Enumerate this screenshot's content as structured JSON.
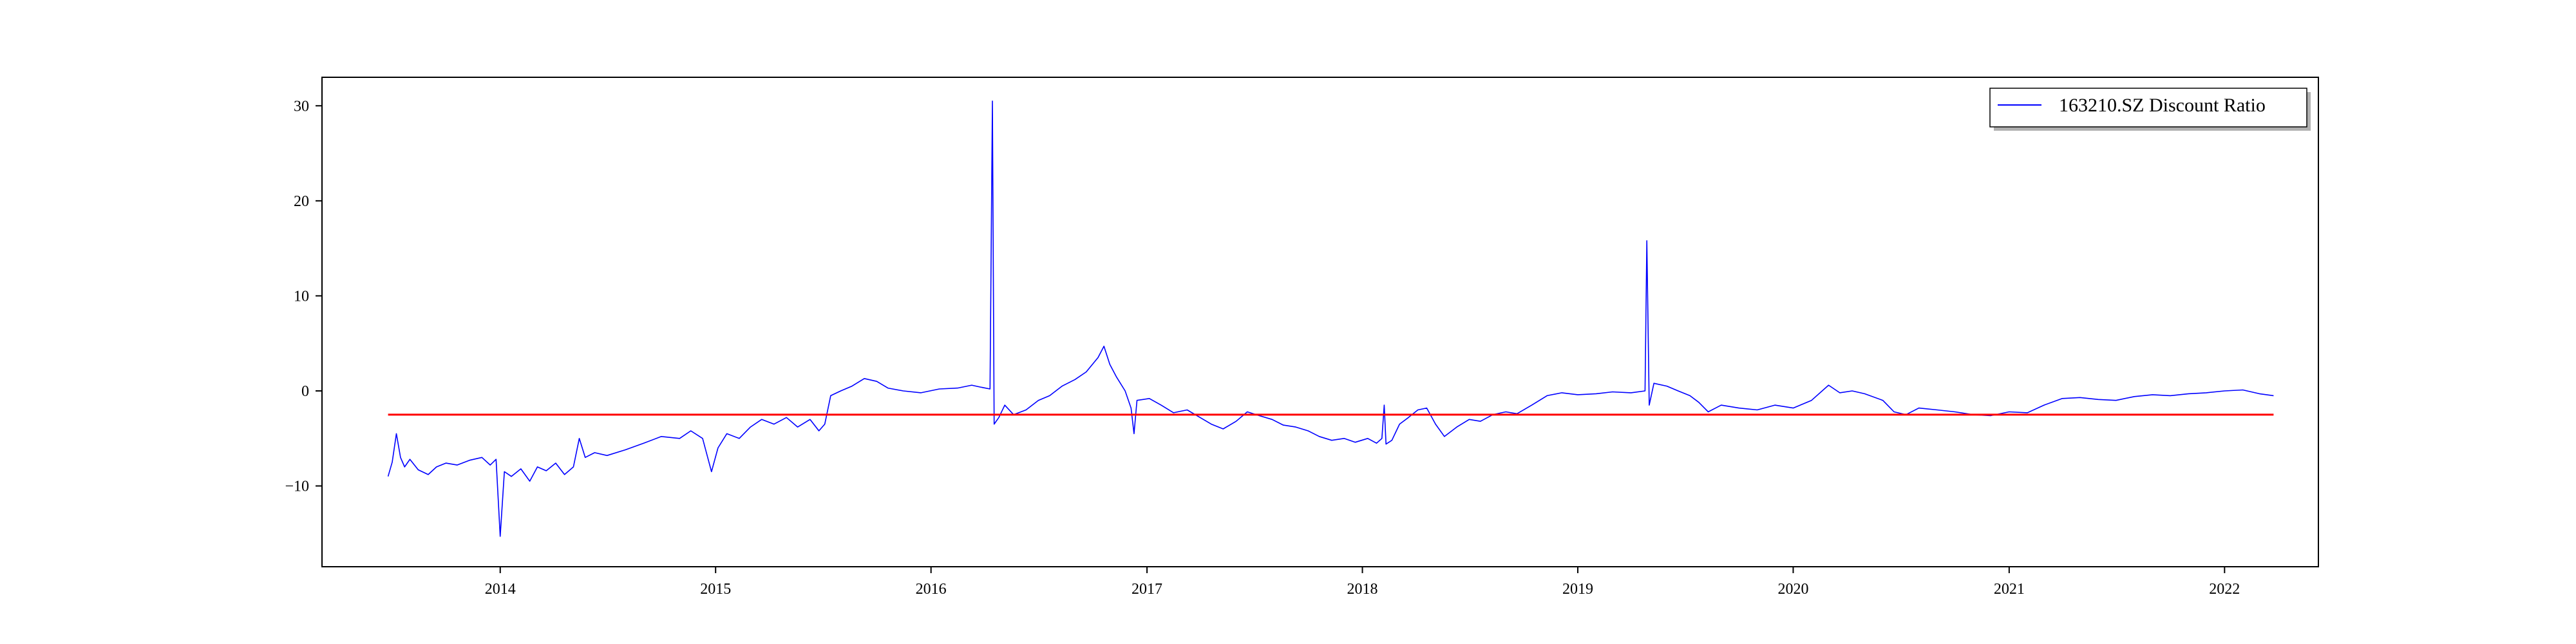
{
  "chart_data": {
    "type": "line",
    "title": "",
    "xlabel": "",
    "ylabel": "",
    "x_range": [
      "2013-03-05",
      "2022-06-09"
    ],
    "ylim": [
      -18.5,
      33.0
    ],
    "x_ticks": [
      "2014",
      "2015",
      "2016",
      "2017",
      "2018",
      "2019",
      "2020",
      "2021",
      "2022"
    ],
    "y_ticks": [
      -10,
      0,
      10,
      20,
      30
    ],
    "y_tick_labels": [
      "−10",
      "0",
      "10",
      "20",
      "30"
    ],
    "grid": false,
    "legend": {
      "position": "top-right",
      "entries": [
        "163210.SZ Discount Ratio"
      ]
    },
    "series": [
      {
        "name": "163210.SZ Discount Ratio",
        "color": "#0000ff",
        "points": [
          [
            "2013-06-25",
            -9.0
          ],
          [
            "2013-07-02",
            -7.5
          ],
          [
            "2013-07-09",
            -4.5
          ],
          [
            "2013-07-16",
            -7.0
          ],
          [
            "2013-07-23",
            -8.0
          ],
          [
            "2013-08-01",
            -7.2
          ],
          [
            "2013-08-15",
            -8.3
          ],
          [
            "2013-09-01",
            -8.8
          ],
          [
            "2013-09-15",
            -8.0
          ],
          [
            "2013-10-01",
            -7.6
          ],
          [
            "2013-10-20",
            -7.8
          ],
          [
            "2013-11-10",
            -7.3
          ],
          [
            "2013-12-01",
            -7.0
          ],
          [
            "2013-12-15",
            -7.8
          ],
          [
            "2013-12-25",
            -7.2
          ],
          [
            "2014-01-01",
            -15.3
          ],
          [
            "2014-01-08",
            -8.5
          ],
          [
            "2014-01-20",
            -9.0
          ],
          [
            "2014-02-05",
            -8.2
          ],
          [
            "2014-02-20",
            -9.5
          ],
          [
            "2014-03-05",
            -8.0
          ],
          [
            "2014-03-20",
            -8.4
          ],
          [
            "2014-04-05",
            -7.6
          ],
          [
            "2014-04-20",
            -8.8
          ],
          [
            "2014-05-05",
            -8.0
          ],
          [
            "2014-05-15",
            -5.0
          ],
          [
            "2014-05-25",
            -7.0
          ],
          [
            "2014-06-10",
            -6.5
          ],
          [
            "2014-07-01",
            -6.8
          ],
          [
            "2014-08-01",
            -6.2
          ],
          [
            "2014-09-01",
            -5.5
          ],
          [
            "2014-10-01",
            -4.8
          ],
          [
            "2014-11-01",
            -5.0
          ],
          [
            "2014-11-20",
            -4.2
          ],
          [
            "2014-12-10",
            -5.0
          ],
          [
            "2014-12-25",
            -8.5
          ],
          [
            "2015-01-05",
            -6.0
          ],
          [
            "2015-01-20",
            -4.5
          ],
          [
            "2015-02-10",
            -5.0
          ],
          [
            "2015-03-01",
            -3.8
          ],
          [
            "2015-03-20",
            -3.0
          ],
          [
            "2015-04-10",
            -3.5
          ],
          [
            "2015-05-01",
            -2.8
          ],
          [
            "2015-05-20",
            -3.8
          ],
          [
            "2015-06-10",
            -3.0
          ],
          [
            "2015-06-25",
            -4.2
          ],
          [
            "2015-07-05",
            -3.5
          ],
          [
            "2015-07-15",
            -0.5
          ],
          [
            "2015-08-01",
            0.0
          ],
          [
            "2015-08-20",
            0.5
          ],
          [
            "2015-09-10",
            1.3
          ],
          [
            "2015-10-01",
            1.0
          ],
          [
            "2015-10-20",
            0.3
          ],
          [
            "2015-11-15",
            0.0
          ],
          [
            "2015-12-15",
            -0.2
          ],
          [
            "2016-01-15",
            0.2
          ],
          [
            "2016-02-15",
            0.3
          ],
          [
            "2016-03-10",
            0.6
          ],
          [
            "2016-03-25",
            0.4
          ],
          [
            "2016-04-10",
            0.2
          ],
          [
            "2016-04-14",
            30.5
          ],
          [
            "2016-04-17",
            -3.5
          ],
          [
            "2016-04-25",
            -2.8
          ],
          [
            "2016-05-05",
            -1.5
          ],
          [
            "2016-05-20",
            -2.5
          ],
          [
            "2016-06-10",
            -2.0
          ],
          [
            "2016-07-01",
            -1.0
          ],
          [
            "2016-07-20",
            -0.5
          ],
          [
            "2016-08-10",
            0.5
          ],
          [
            "2016-09-01",
            1.2
          ],
          [
            "2016-09-20",
            2.0
          ],
          [
            "2016-10-10",
            3.5
          ],
          [
            "2016-10-20",
            4.7
          ],
          [
            "2016-10-30",
            2.8
          ],
          [
            "2016-11-10",
            1.5
          ],
          [
            "2016-11-25",
            0.0
          ],
          [
            "2016-12-05",
            -1.8
          ],
          [
            "2016-12-10",
            -4.5
          ],
          [
            "2016-12-15",
            -1.0
          ],
          [
            "2017-01-05",
            -0.8
          ],
          [
            "2017-01-25",
            -1.5
          ],
          [
            "2017-02-15",
            -2.3
          ],
          [
            "2017-03-10",
            -2.0
          ],
          [
            "2017-04-01",
            -2.8
          ],
          [
            "2017-04-20",
            -3.5
          ],
          [
            "2017-05-10",
            -4.0
          ],
          [
            "2017-06-01",
            -3.2
          ],
          [
            "2017-06-20",
            -2.2
          ],
          [
            "2017-07-10",
            -2.6
          ],
          [
            "2017-08-01",
            -3.0
          ],
          [
            "2017-08-20",
            -3.6
          ],
          [
            "2017-09-10",
            -3.8
          ],
          [
            "2017-10-01",
            -4.2
          ],
          [
            "2017-10-20",
            -4.8
          ],
          [
            "2017-11-10",
            -5.2
          ],
          [
            "2017-12-01",
            -5.0
          ],
          [
            "2017-12-20",
            -5.4
          ],
          [
            "2018-01-10",
            -5.0
          ],
          [
            "2018-01-25",
            -5.5
          ],
          [
            "2018-02-03",
            -5.0
          ],
          [
            "2018-02-07",
            -1.5
          ],
          [
            "2018-02-10",
            -5.6
          ],
          [
            "2018-02-20",
            -5.2
          ],
          [
            "2018-03-05",
            -3.5
          ],
          [
            "2018-03-20",
            -2.8
          ],
          [
            "2018-04-05",
            -2.0
          ],
          [
            "2018-04-20",
            -1.8
          ],
          [
            "2018-05-05",
            -3.5
          ],
          [
            "2018-05-20",
            -4.8
          ],
          [
            "2018-06-10",
            -3.8
          ],
          [
            "2018-07-01",
            -3.0
          ],
          [
            "2018-07-20",
            -3.2
          ],
          [
            "2018-08-10",
            -2.5
          ],
          [
            "2018-09-01",
            -2.2
          ],
          [
            "2018-09-20",
            -2.4
          ],
          [
            "2018-10-15",
            -1.5
          ],
          [
            "2018-11-10",
            -0.5
          ],
          [
            "2018-12-05",
            -0.2
          ],
          [
            "2019-01-01",
            -0.4
          ],
          [
            "2019-02-01",
            -0.3
          ],
          [
            "2019-03-01",
            -0.1
          ],
          [
            "2019-04-01",
            -0.2
          ],
          [
            "2019-04-25",
            0.0
          ],
          [
            "2019-04-28",
            15.8
          ],
          [
            "2019-05-02",
            -1.5
          ],
          [
            "2019-05-10",
            0.8
          ],
          [
            "2019-06-01",
            0.5
          ],
          [
            "2019-06-20",
            0.0
          ],
          [
            "2019-07-10",
            -0.5
          ],
          [
            "2019-07-25",
            -1.2
          ],
          [
            "2019-08-10",
            -2.2
          ],
          [
            "2019-09-01",
            -1.5
          ],
          [
            "2019-10-01",
            -1.8
          ],
          [
            "2019-11-01",
            -2.0
          ],
          [
            "2019-12-01",
            -1.5
          ],
          [
            "2020-01-01",
            -1.8
          ],
          [
            "2020-02-01",
            -1.0
          ],
          [
            "2020-03-01",
            0.6
          ],
          [
            "2020-03-20",
            -0.2
          ],
          [
            "2020-04-10",
            0.0
          ],
          [
            "2020-05-01",
            -0.3
          ],
          [
            "2020-06-01",
            -1.0
          ],
          [
            "2020-06-20",
            -2.2
          ],
          [
            "2020-07-10",
            -2.5
          ],
          [
            "2020-08-01",
            -1.8
          ],
          [
            "2020-09-01",
            -2.0
          ],
          [
            "2020-10-01",
            -2.2
          ],
          [
            "2020-11-01",
            -2.5
          ],
          [
            "2020-12-01",
            -2.6
          ],
          [
            "2021-01-01",
            -2.2
          ],
          [
            "2021-02-01",
            -2.3
          ],
          [
            "2021-03-01",
            -1.5
          ],
          [
            "2021-04-01",
            -0.8
          ],
          [
            "2021-05-01",
            -0.7
          ],
          [
            "2021-06-01",
            -0.9
          ],
          [
            "2021-07-01",
            -1.0
          ],
          [
            "2021-08-01",
            -0.6
          ],
          [
            "2021-09-01",
            -0.4
          ],
          [
            "2021-10-01",
            -0.5
          ],
          [
            "2021-11-01",
            -0.3
          ],
          [
            "2021-12-01",
            -0.2
          ],
          [
            "2022-01-01",
            0.0
          ],
          [
            "2022-02-01",
            0.1
          ],
          [
            "2022-03-01",
            -0.3
          ],
          [
            "2022-03-25",
            -0.5
          ]
        ]
      },
      {
        "color": "#ff0000",
        "points": [
          [
            "2013-06-25",
            -2.5
          ],
          [
            "2022-03-25",
            -2.5
          ]
        ]
      }
    ]
  }
}
